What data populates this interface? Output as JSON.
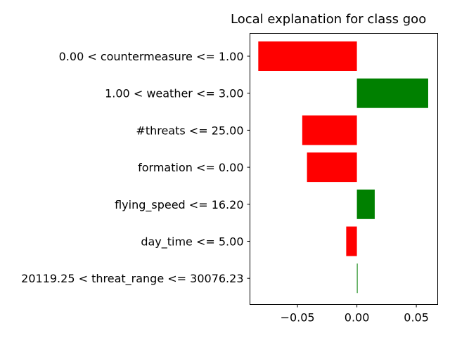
{
  "chart_data": {
    "type": "bar",
    "orientation": "horizontal",
    "title": "Local explanation for class goo",
    "xlabel": "",
    "ylabel": "",
    "categories": [
      "0.00 < countermeasure <= 1.00",
      "1.00 < weather <= 3.00",
      "#threats <= 25.00",
      "formation <= 0.00",
      "flying_speed <= 16.20",
      "day_time <= 5.00",
      "20119.25 < threat_range <= 30076.23"
    ],
    "values": [
      -0.083,
      0.06,
      -0.046,
      -0.042,
      0.015,
      -0.009,
      0.0006
    ],
    "xlim": [
      -0.09,
      0.068
    ],
    "xticks": [
      -0.05,
      0.0,
      0.05
    ],
    "xtick_labels": [
      "−0.05",
      "0.00",
      "0.05"
    ],
    "colors": {
      "positive": "#008000",
      "negative": "#ff0000"
    },
    "grid": false,
    "legend": "none"
  }
}
